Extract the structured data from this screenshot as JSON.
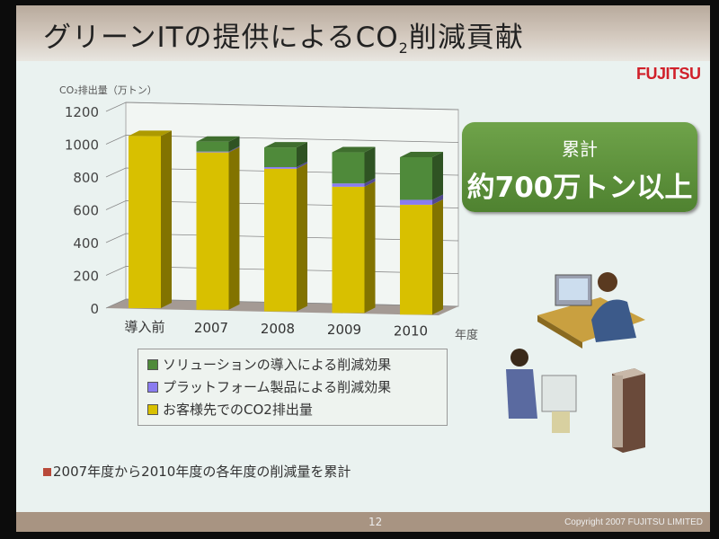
{
  "slide": {
    "title": "グリーンITの提供によるCO",
    "title_sub": "2",
    "title_tail": "削減貢献",
    "logo_text": "FUJITSU",
    "total_box": {
      "label": "累計",
      "value": "約700万トン以上"
    },
    "note": "2007年度から2010年度の各年度の削減量を累計",
    "page_number": "12",
    "copyright": "Copyright 2007 FUJITSU LIMITED"
  },
  "chart_data": {
    "type": "bar",
    "stacked": true,
    "three_d": true,
    "ylabel": "CO₂排出量（万トン）",
    "xlabel": "年度",
    "categories": [
      "導入前",
      "2007",
      "2008",
      "2009",
      "2010"
    ],
    "ylim": [
      0,
      1200
    ],
    "yticks": [
      0,
      200,
      400,
      600,
      800,
      1000,
      1200
    ],
    "grid": true,
    "legend_position": "bottom",
    "series": [
      {
        "name": "お客様先でのCO2排出量",
        "color": "#d8c000",
        "values": [
          1050,
          960,
          870,
          770,
          670
        ]
      },
      {
        "name": "プラットフォーム製品による削減効果",
        "color": "#8a7cf0",
        "values": [
          0,
          5,
          10,
          20,
          30
        ]
      },
      {
        "name": "ソリューションの導入による削減効果",
        "color": "#4f8a3a",
        "values": [
          0,
          60,
          120,
          190,
          260
        ]
      }
    ],
    "legend_order": [
      2,
      1,
      0
    ]
  },
  "colors": {
    "accent_green": "#5a9238",
    "logo_red": "#d0202a"
  }
}
